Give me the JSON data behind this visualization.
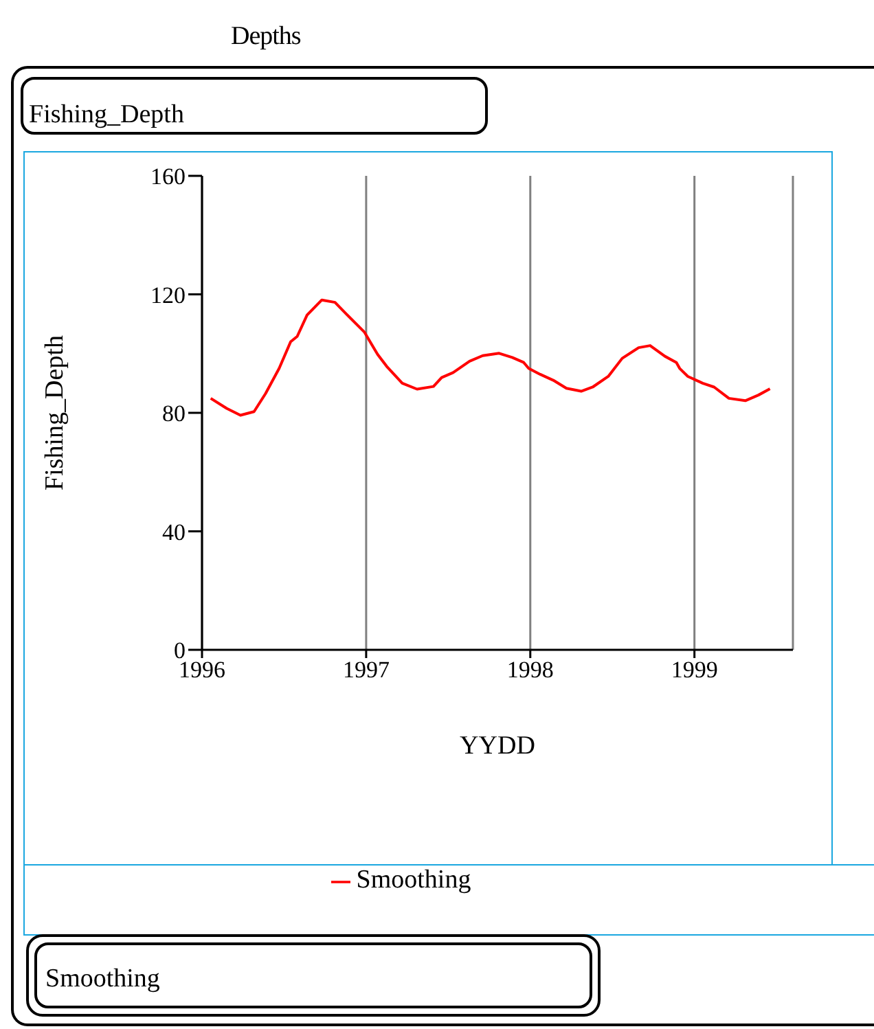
{
  "chart_data": {
    "type": "line",
    "title": "Depths",
    "subtitle": "Fishing_Depth",
    "xlabel": "YYDD",
    "ylabel": "Fishing_Depth",
    "annotations": [
      "Smoothing"
    ],
    "x": [
      1996.053,
      1996.15,
      1996.234,
      1996.317,
      1996.387,
      1996.47,
      1996.54,
      1996.58,
      1996.64,
      1996.73,
      1996.81,
      1996.875,
      1996.99,
      1997.055,
      1997.07,
      1997.125,
      1997.22,
      1997.31,
      1997.41,
      1997.46,
      1997.53,
      1997.63,
      1997.71,
      1997.81,
      1997.89,
      1997.96,
      1997.99,
      1998.06,
      1998.14,
      1998.22,
      1998.31,
      1998.38,
      1998.475,
      1998.56,
      1998.66,
      1998.73,
      1998.82,
      1998.89,
      1998.91,
      1998.96,
      1999.05,
      1999.12,
      1999.21,
      1999.31,
      1999.39,
      1999.46
    ],
    "series": [
      {
        "name": "Smoothing",
        "color": "#ff0000",
        "values": [
          84.9,
          81.5,
          79.2,
          80.4,
          86.5,
          95.0,
          104.0,
          105.8,
          113.0,
          118.1,
          117.3,
          113.6,
          107.2,
          101.1,
          99.7,
          95.7,
          90.0,
          88.0,
          88.9,
          91.9,
          93.6,
          97.4,
          99.3,
          100.1,
          98.7,
          97.0,
          95.0,
          93.0,
          91.0,
          88.3,
          87.3,
          88.7,
          92.3,
          98.4,
          102.0,
          102.7,
          99.1,
          97.0,
          95.0,
          92.3,
          90.0,
          88.7,
          84.9,
          84.1,
          86.0,
          88.1
        ]
      }
    ],
    "xlim": [
      1996,
      1999.6
    ],
    "xticks": [
      1996,
      1997,
      1998,
      1999
    ],
    "ylim": [
      0,
      160
    ],
    "yticks": [
      0,
      40,
      80,
      120,
      160
    ],
    "grid": "x",
    "legend": "bottom",
    "line_style": "solid",
    "marker": "none"
  }
}
